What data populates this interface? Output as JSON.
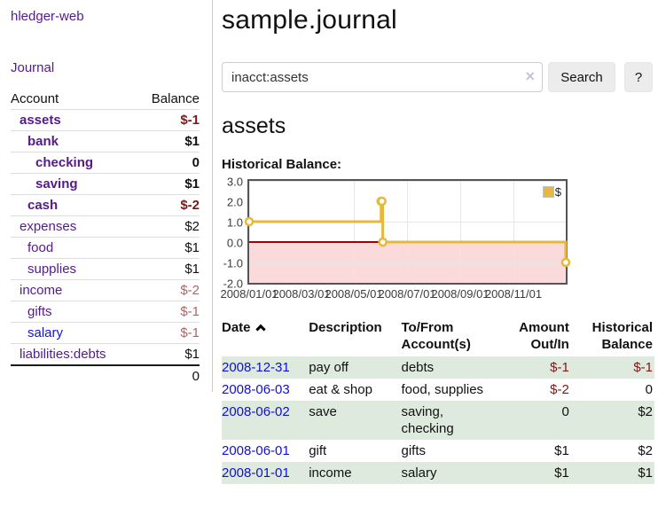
{
  "app": {
    "brand": "hledger-web"
  },
  "nav": {
    "journal": "Journal"
  },
  "sidebar": {
    "col_account": "Account",
    "col_balance": "Balance",
    "rows": [
      {
        "account": "assets",
        "balance": "$-1"
      },
      {
        "account": "bank",
        "balance": "$1"
      },
      {
        "account": "checking",
        "balance": "0"
      },
      {
        "account": "saving",
        "balance": "$1"
      },
      {
        "account": "cash",
        "balance": "$-2"
      },
      {
        "account": "expenses",
        "balance": "$2"
      },
      {
        "account": "food",
        "balance": "$1"
      },
      {
        "account": "supplies",
        "balance": "$1"
      },
      {
        "account": "income",
        "balance": "$-2"
      },
      {
        "account": "gifts",
        "balance": "$-1"
      },
      {
        "account": "salary",
        "balance": "$-1"
      },
      {
        "account": "liabilities:debts",
        "balance": "$1"
      }
    ],
    "total": "0"
  },
  "header": {
    "title": "sample.journal"
  },
  "search": {
    "value": "inacct:assets",
    "clear_icon": "×",
    "search_label": "Search",
    "help_label": "?"
  },
  "register": {
    "heading": "assets",
    "chart_label": "Historical Balance:",
    "columns": {
      "date": "Date",
      "description": "Description",
      "accounts": "To/From Account(s)",
      "amount": "Amount Out/In",
      "balance": "Historical Balance"
    },
    "sort_icon": "chevron-up",
    "rows": [
      {
        "date": "2008-12-31",
        "description": "pay off",
        "accounts": "debts",
        "amount": "$-1",
        "balance": "$-1"
      },
      {
        "date": "2008-06-03",
        "description": "eat & shop",
        "accounts": "food, supplies",
        "amount": "$-2",
        "balance": "0"
      },
      {
        "date": "2008-06-02",
        "description": "save",
        "accounts": "saving, checking",
        "amount": "0",
        "balance": "$2"
      },
      {
        "date": "2008-06-01",
        "description": "gift",
        "accounts": "gifts",
        "amount": "$1",
        "balance": "$2"
      },
      {
        "date": "2008-01-01",
        "description": "income",
        "accounts": "salary",
        "amount": "$1",
        "balance": "$1"
      }
    ]
  },
  "chart_data": {
    "type": "line",
    "style": "step",
    "title": "Historical Balance:",
    "x_range": [
      "2008-01-01",
      "2008-12-31"
    ],
    "ylim": [
      -2,
      3
    ],
    "series": [
      {
        "name": "$",
        "color": "#e6b93c",
        "points": [
          [
            "2008-01-01",
            1
          ],
          [
            "2008-06-01",
            2
          ],
          [
            "2008-06-02",
            2
          ],
          [
            "2008-06-03",
            0
          ],
          [
            "2008-12-31",
            -1
          ]
        ]
      }
    ],
    "yticks": [
      "3.0",
      "2.0",
      "1.0",
      "0.0",
      "-1.0",
      "-2.0"
    ],
    "xticks": [
      "2008/01/01",
      "2008/03/01",
      "2008/05/01",
      "2008/07/01",
      "2008/09/01",
      "2008/11/01"
    ],
    "legend": {
      "label": "$",
      "position": "top-right"
    },
    "grid": true,
    "negative_region_fill": "#fadada",
    "zero_line_color": "#a40000"
  }
}
